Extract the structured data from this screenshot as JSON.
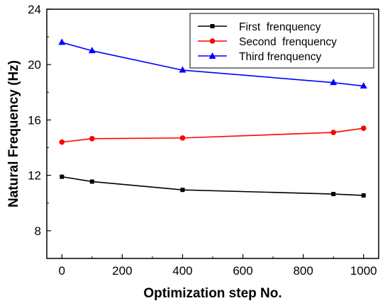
{
  "chart_data": {
    "type": "line",
    "xlabel": "Optimization step No.",
    "ylabel": "Natural Frequency (Hz)",
    "xlim": [
      -50,
      1050
    ],
    "ylim": [
      6,
      24
    ],
    "xticks": [
      0,
      200,
      400,
      600,
      800,
      1000
    ],
    "yticks": [
      8,
      12,
      16,
      20,
      24
    ],
    "legend_position": "top-right",
    "grid": false,
    "series": [
      {
        "name": "First  frenquency",
        "color": "#000000",
        "marker": "square",
        "x": [
          0,
          100,
          400,
          900,
          1000
        ],
        "y": [
          11.9,
          11.55,
          10.95,
          10.65,
          10.55
        ]
      },
      {
        "name": "Second  frenquency",
        "color": "#ff0000",
        "marker": "circle",
        "x": [
          0,
          100,
          400,
          900,
          1000
        ],
        "y": [
          14.4,
          14.65,
          14.7,
          15.1,
          15.4
        ]
      },
      {
        "name": "Third frenquency",
        "color": "#0000ff",
        "marker": "triangle",
        "x": [
          0,
          100,
          400,
          900,
          1000
        ],
        "y": [
          21.6,
          21.0,
          19.6,
          18.7,
          18.45
        ]
      }
    ]
  }
}
